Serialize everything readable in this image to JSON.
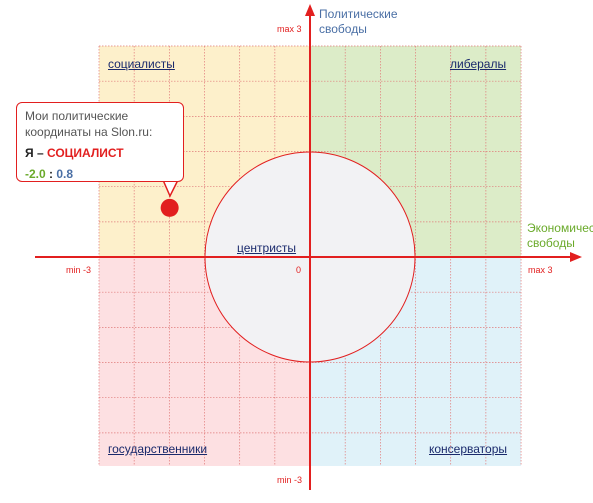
{
  "colors": {
    "axis": "#e21f1f",
    "socialists_fill": "#fdf0cb",
    "liberals_fill": "#dcecc8",
    "statists_fill": "#fde0e2",
    "conservatives_fill": "#e0f2f9",
    "center_fill": "#f2f2f4",
    "grid": "#e07a7a",
    "economic_label": "#6aaa2a",
    "political_label": "#4a6fa5"
  },
  "axes": {
    "y_max": "max 3",
    "y_min": "min -3",
    "x_max": "max 3",
    "x_min": "min -3",
    "origin": "0",
    "y_title_line1": "Политические",
    "y_title_line2": "свободы",
    "x_title_line1": "Экономические",
    "x_title_line2": "свободы",
    "range": [
      -3,
      3
    ]
  },
  "quadrants": {
    "socialists": "социалисты",
    "liberals": "либералы",
    "statists": "государственники",
    "conservatives": "консерваторы",
    "centrists": "центристы"
  },
  "callout": {
    "line1": "Мои политические",
    "line2": "координаты на Slon.ru:",
    "me_prefix": "Я – ",
    "me_value": "СОЦИАЛИСТ",
    "x_value": "-2.0",
    "separator": " : ",
    "y_value": "0.8"
  },
  "marker": {
    "x": -2.0,
    "y": 0.8
  }
}
